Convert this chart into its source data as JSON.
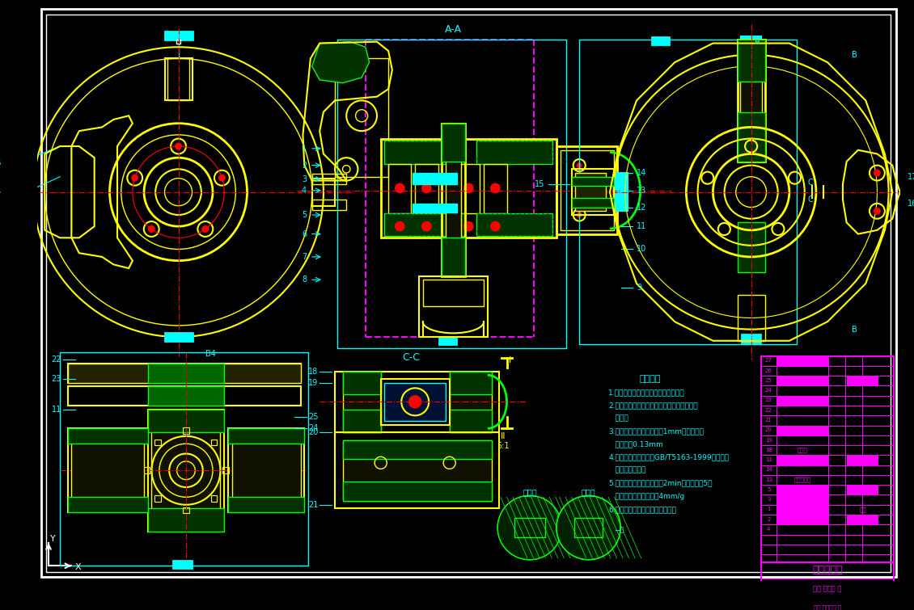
{
  "background_color": "#000000",
  "border_color": "#ffffff",
  "yellow_color": "#ffff00",
  "cyan_color": "#00ffff",
  "red_color": "#ff0000",
  "green_color": "#00ff00",
  "magenta_color": "#ff00ff",
  "white_color": "#ffffff",
  "dark_green_fill": "#003300",
  "green_fill": "#006600",
  "notes_title": "技术要求",
  "notes": [
    "1.装配过程中不到磁位零件各工序表面",
    "2.摩擦装在制动盘上不允许有油脂，污染及其",
    "   它异物",
    "3.左制动盘最大直径走向内1mm，共滑面粗",
    "   度不大于0.13mm",
    "4.其余技术条件应符合GB/T5163-1999《磁车制",
    "   动器性能要求》",
    "5.车制动器额定内压力施压2min后时，保压5分",
    "   钟，腔内压力不能超过4mm/g",
    "6.工作介质：先锋动力液压制动液"
  ]
}
